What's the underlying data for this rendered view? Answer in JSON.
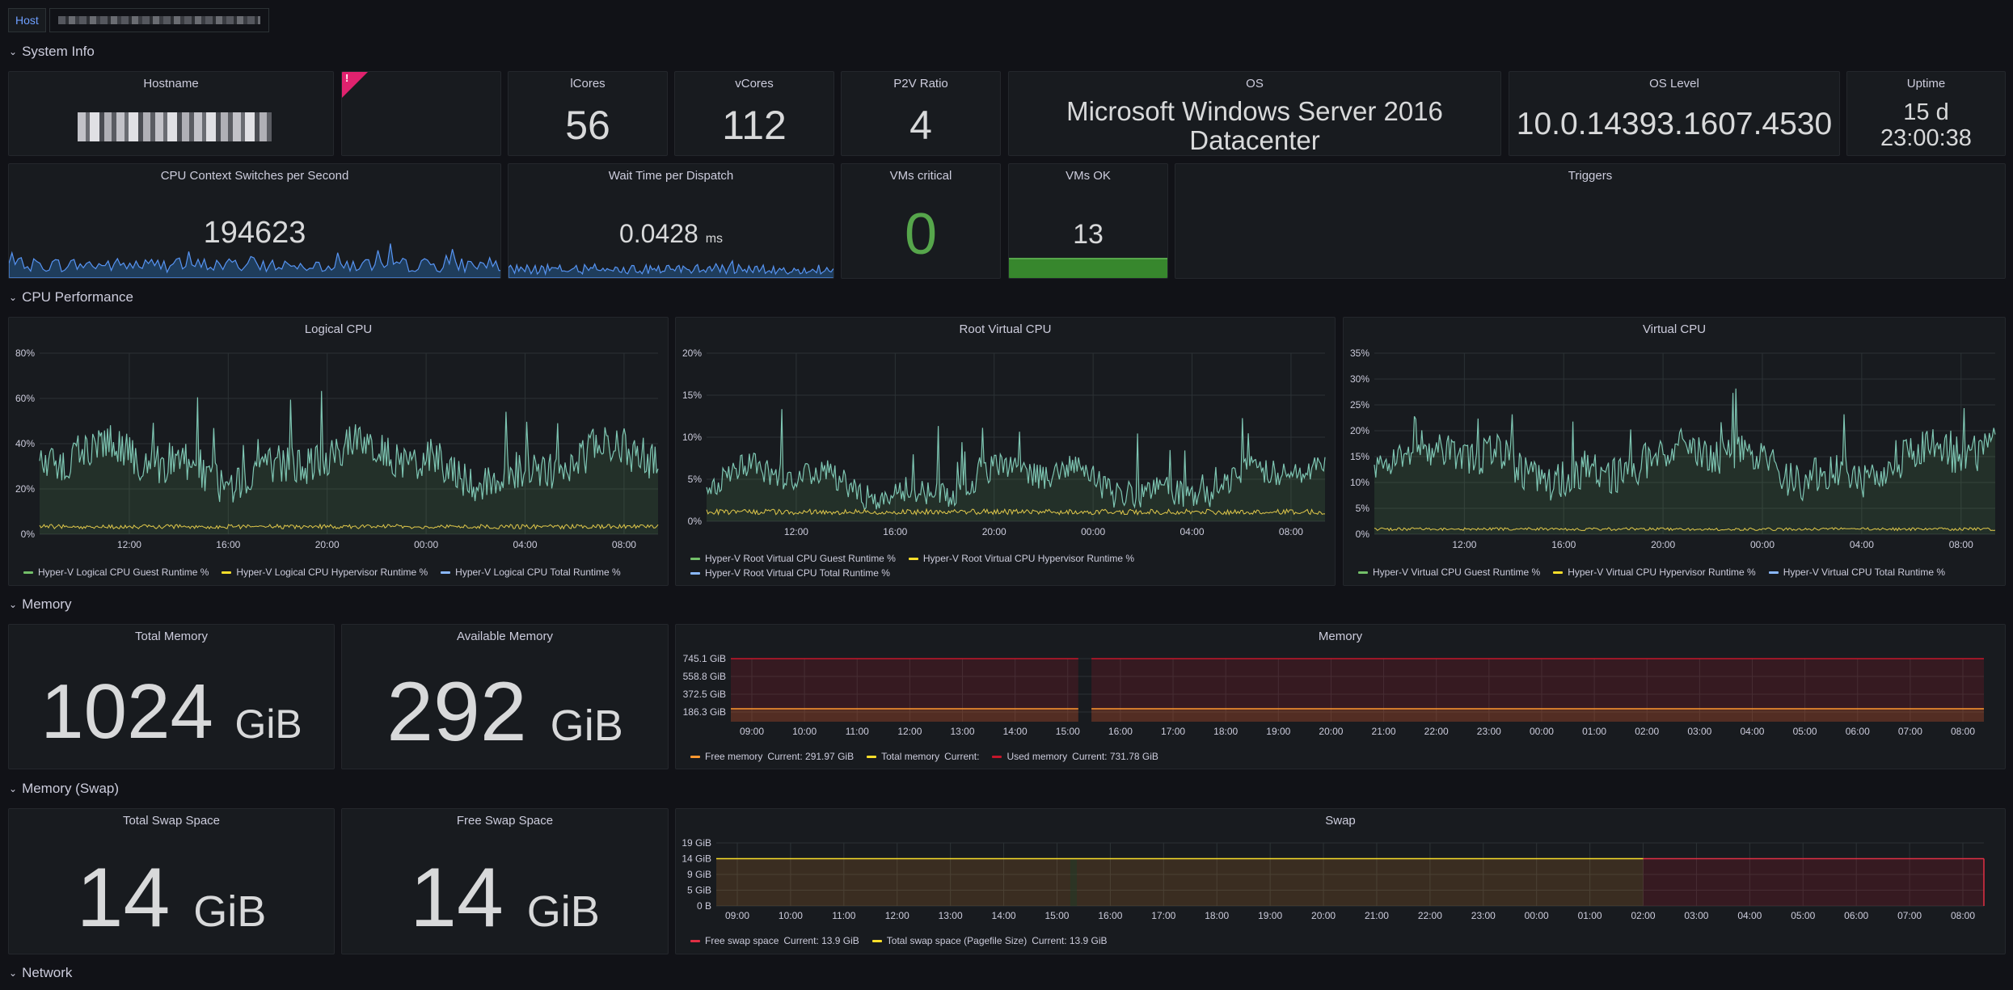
{
  "variables": {
    "host_label": "Host"
  },
  "rows": {
    "system_info": "System Info",
    "cpu_performance": "CPU Performance",
    "memory": "Memory",
    "memory_swap": "Memory (Swap)",
    "network": "Network"
  },
  "system_info": {
    "hostname_title": "Hostname",
    "trigger_flag": "!",
    "lcores_title": "lCores",
    "lcores_value": "56",
    "vcores_title": "vCores",
    "vcores_value": "112",
    "p2v_title": "P2V Ratio",
    "p2v_value": "4",
    "os_title": "OS",
    "os_line1": "Microsoft Windows Server 2016",
    "os_line2": "Datacenter",
    "oslevel_title": "OS Level",
    "oslevel_value": "10.0.14393.1607.4530",
    "uptime_title": "Uptime",
    "uptime_line1": "15 d",
    "uptime_line2": "23:00:38",
    "ctx_title": "CPU Context Switches per Second",
    "ctx_value": "194623",
    "wait_title": "Wait Time per Dispatch",
    "wait_value": "0.0428",
    "wait_unit": "ms",
    "vmcrit_title": "VMs critical",
    "vmcrit_value": "0",
    "vmok_title": "VMs OK",
    "vmok_value": "13",
    "triggers_title": "Triggers"
  },
  "cpu": {
    "logical": {
      "title": "Logical CPU",
      "yticks": [
        "0%",
        "20%",
        "40%",
        "60%",
        "80%"
      ],
      "xticks": [
        "12:00",
        "16:00",
        "20:00",
        "00:00",
        "04:00",
        "08:00"
      ],
      "legend": [
        "Hyper-V Logical CPU Guest Runtime %",
        "Hyper-V Logical CPU Hypervisor Runtime %",
        "Hyper-V Logical CPU Total Runtime %"
      ]
    },
    "root": {
      "title": "Root Virtual CPU",
      "yticks": [
        "0%",
        "5%",
        "10%",
        "15%",
        "20%"
      ],
      "xticks": [
        "12:00",
        "16:00",
        "20:00",
        "00:00",
        "04:00",
        "08:00"
      ],
      "legend": [
        "Hyper-V Root Virtual CPU Guest Runtime %",
        "Hyper-V Root Virtual CPU Hypervisor Runtime %",
        "Hyper-V Root Virtual CPU Total Runtime %"
      ]
    },
    "virtual": {
      "title": "Virtual CPU",
      "yticks": [
        "0%",
        "5%",
        "10%",
        "15%",
        "20%",
        "25%",
        "30%",
        "35%"
      ],
      "xticks": [
        "12:00",
        "16:00",
        "20:00",
        "00:00",
        "04:00",
        "08:00"
      ],
      "legend": [
        "Hyper-V Virtual CPU Guest Runtime %",
        "Hyper-V Virtual CPU Hypervisor Runtime %",
        "Hyper-V Virtual CPU Total Runtime %"
      ]
    }
  },
  "memory": {
    "total_title": "Total Memory",
    "total_value": "1024",
    "total_unit": "GiB",
    "avail_title": "Available Memory",
    "avail_value": "292",
    "avail_unit": "GiB",
    "chart_title": "Memory",
    "yticks": [
      "186.3 GiB",
      "372.5 GiB",
      "558.8 GiB",
      "745.1 GiB"
    ],
    "xticks": [
      "09:00",
      "10:00",
      "11:00",
      "12:00",
      "13:00",
      "14:00",
      "15:00",
      "16:00",
      "17:00",
      "18:00",
      "19:00",
      "20:00",
      "21:00",
      "22:00",
      "23:00",
      "00:00",
      "01:00",
      "02:00",
      "03:00",
      "04:00",
      "05:00",
      "06:00",
      "07:00",
      "08:00"
    ],
    "legend": [
      {
        "name": "Free memory",
        "current": "Current: 291.97 GiB"
      },
      {
        "name": "Total memory",
        "current": "Current:"
      },
      {
        "name": "Used memory",
        "current": "Current: 731.78 GiB"
      }
    ]
  },
  "swap": {
    "total_title": "Total Swap Space",
    "total_value": "14",
    "total_unit": "GiB",
    "free_title": "Free Swap Space",
    "free_value": "14",
    "free_unit": "GiB",
    "chart_title": "Swap",
    "yticks": [
      "0 B",
      "5 GiB",
      "9 GiB",
      "14 GiB",
      "19 GiB"
    ],
    "xticks": [
      "09:00",
      "10:00",
      "11:00",
      "12:00",
      "13:00",
      "14:00",
      "15:00",
      "16:00",
      "17:00",
      "18:00",
      "19:00",
      "20:00",
      "21:00",
      "22:00",
      "23:00",
      "00:00",
      "01:00",
      "02:00",
      "03:00",
      "04:00",
      "05:00",
      "06:00",
      "07:00",
      "08:00"
    ],
    "legend": [
      {
        "name": "Free swap space",
        "current": "Current: 13.9 GiB"
      },
      {
        "name": "Total swap space (Pagefile Size)",
        "current": "Current: 13.9 GiB"
      }
    ]
  },
  "colors": {
    "green": "#73bf69",
    "yellow": "#fade2a",
    "cyan": "#8ab8ff",
    "teal": "#7eb8a8",
    "orange": "#ff9830",
    "red": "#c4162a",
    "stat_green": "#37872d",
    "accent": "#6e9fff"
  },
  "chart_data": [
    {
      "type": "line",
      "title": "Logical CPU",
      "ylim": [
        0,
        80
      ],
      "series": [
        {
          "name": "Hyper-V Logical CPU Total Runtime %",
          "approx_range": [
            20,
            72
          ]
        },
        {
          "name": "Hyper-V Logical CPU Hypervisor Runtime %",
          "approx_range": [
            1,
            4
          ]
        }
      ]
    },
    {
      "type": "line",
      "title": "Root Virtual CPU",
      "ylim": [
        0,
        20
      ],
      "series": [
        {
          "name": "Hyper-V Root Virtual CPU Total Runtime %",
          "approx_range": [
            3,
            18
          ]
        },
        {
          "name": "Hyper-V Root Virtual CPU Hypervisor Runtime %",
          "approx_range": [
            0.5,
            1
          ]
        }
      ]
    },
    {
      "type": "line",
      "title": "Virtual CPU",
      "ylim": [
        0,
        35
      ],
      "series": [
        {
          "name": "Hyper-V Virtual CPU Total Runtime %",
          "approx_range": [
            5,
            33
          ]
        },
        {
          "name": "Hyper-V Virtual CPU Hypervisor Runtime %",
          "approx_range": [
            0.3,
            1
          ]
        }
      ]
    },
    {
      "type": "area",
      "title": "Memory",
      "series": [
        {
          "name": "Used memory",
          "value": 731.78
        },
        {
          "name": "Free memory",
          "value": 291.97
        }
      ]
    },
    {
      "type": "area",
      "title": "Swap",
      "series": [
        {
          "name": "Free swap space",
          "value": 13.9
        },
        {
          "name": "Total swap space (Pagefile Size)",
          "value": 13.9
        }
      ]
    }
  ]
}
